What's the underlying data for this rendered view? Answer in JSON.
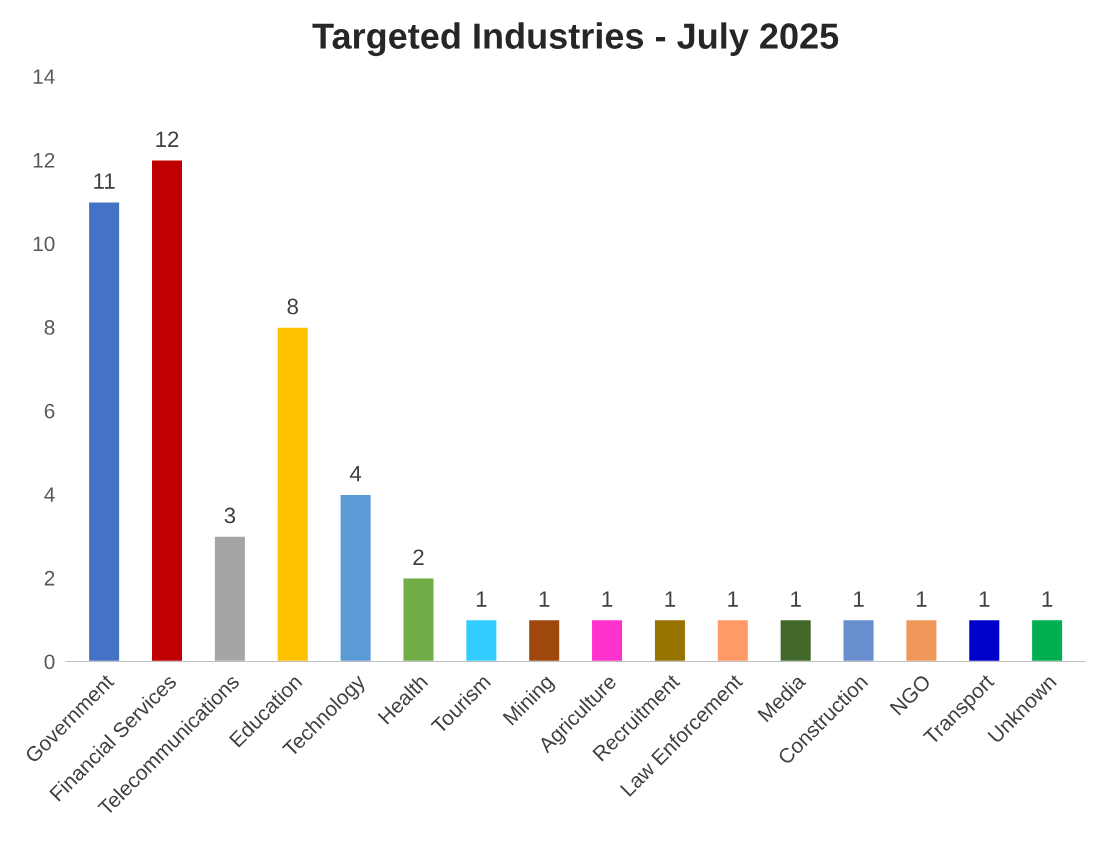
{
  "chart_data": {
    "type": "bar",
    "title": "Targeted Industries - July 2025",
    "categories": [
      "Government",
      "Financial Services",
      "Telecommunications",
      "Education",
      "Technology",
      "Health",
      "Tourism",
      "Mining",
      "Agriculture",
      "Recruitment",
      "Law Enforcement",
      "Media",
      "Construction",
      "NGO",
      "Transport",
      "Unknown"
    ],
    "values": [
      11,
      12,
      3,
      8,
      4,
      2,
      1,
      1,
      1,
      1,
      1,
      1,
      1,
      1,
      1,
      1
    ],
    "colors": [
      "#4472c4",
      "#c00000",
      "#a5a5a5",
      "#ffc000",
      "#5b9bd5",
      "#70ad47",
      "#33ccff",
      "#9e480e",
      "#ff33cc",
      "#997300",
      "#ff9966",
      "#43682b",
      "#698ed0",
      "#f1975a",
      "#0000cc",
      "#00b050"
    ],
    "ylim": [
      0,
      14
    ],
    "yticks": [
      0,
      2,
      4,
      6,
      8,
      10,
      12,
      14
    ],
    "grid": false,
    "data_labels": true
  }
}
